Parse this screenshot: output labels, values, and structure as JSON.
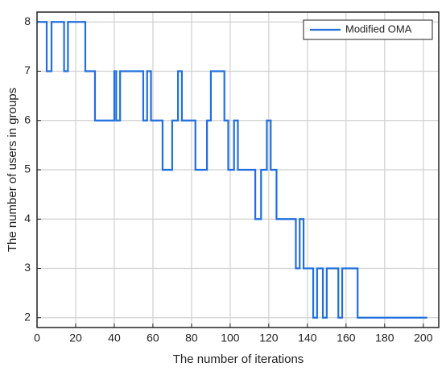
{
  "chart_data": {
    "type": "line",
    "step": "post",
    "xlabel": "The number of iterations",
    "ylabel": "The number of users in groups",
    "x": [
      0,
      5,
      7.5,
      14,
      16,
      25,
      30,
      40,
      41,
      43,
      55,
      57,
      59,
      65,
      70,
      73,
      75,
      82,
      88,
      90,
      97,
      99,
      102,
      104,
      113,
      116,
      119,
      121,
      124,
      134,
      136,
      138,
      143,
      145,
      148,
      150,
      156,
      158,
      166,
      202
    ],
    "series": [
      {
        "name": "Modified OMA",
        "color": "#1f6fde",
        "values": [
          8,
          7,
          8,
          7,
          8,
          7,
          6,
          7,
          6,
          7,
          6,
          7,
          6,
          5,
          6,
          7,
          6,
          5,
          6,
          7,
          6,
          5,
          6,
          5,
          4,
          5,
          6,
          5,
          4,
          3,
          4,
          3,
          2,
          3,
          2,
          3,
          2,
          3,
          2,
          2
        ]
      }
    ],
    "xlim": [
      0,
      208
    ],
    "ylim": [
      1.8,
      8.2
    ],
    "xticks": [
      0,
      20,
      40,
      60,
      80,
      100,
      120,
      140,
      160,
      180,
      200
    ],
    "yticks": [
      2,
      3,
      4,
      5,
      6,
      7,
      8
    ],
    "grid": true,
    "legend": "upper right"
  }
}
